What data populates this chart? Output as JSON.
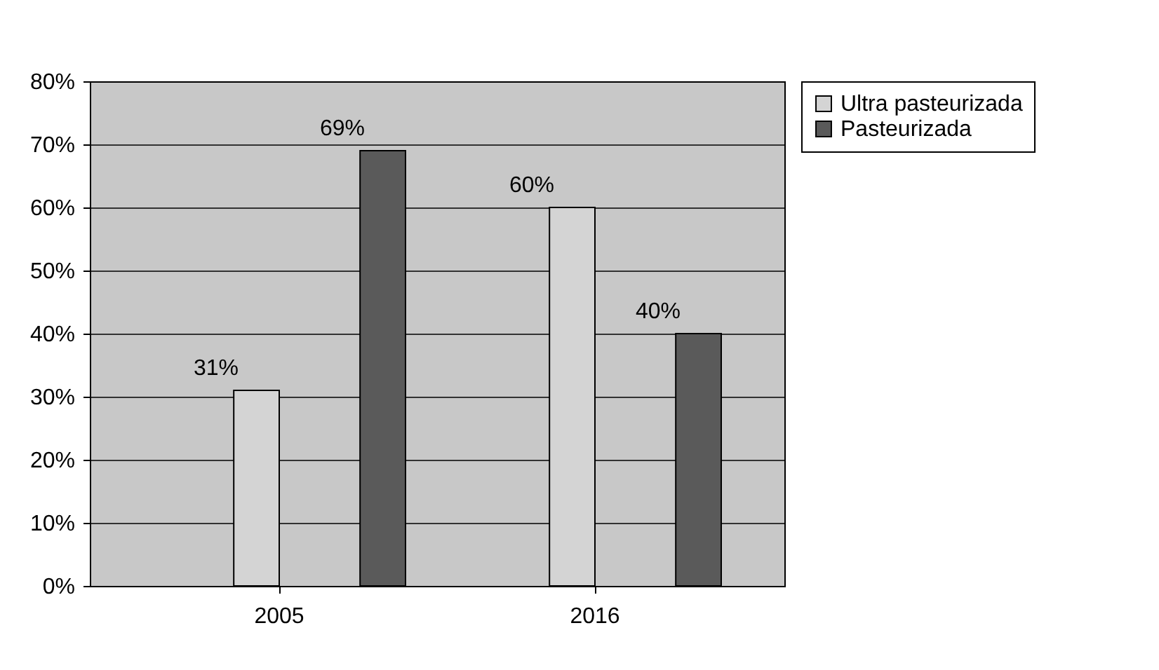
{
  "chart_data": {
    "type": "bar",
    "categories": [
      "2005",
      "2016"
    ],
    "series": [
      {
        "name": "Ultra pasteurizada",
        "color": "#d4d4d4",
        "values": [
          31,
          60
        ],
        "value_labels": [
          "31%",
          "60%"
        ]
      },
      {
        "name": "Pasteurizada",
        "color": "#5a5a5a",
        "values": [
          69,
          40
        ],
        "value_labels": [
          "69%",
          "40%"
        ]
      }
    ],
    "ylim": [
      0,
      80
    ],
    "yticks": [
      {
        "value": 0,
        "label": "0%"
      },
      {
        "value": 10,
        "label": "10%"
      },
      {
        "value": 20,
        "label": "20%"
      },
      {
        "value": 30,
        "label": "30%"
      },
      {
        "value": 40,
        "label": "40%"
      },
      {
        "value": 50,
        "label": "50%"
      },
      {
        "value": 60,
        "label": "60%"
      },
      {
        "value": 70,
        "label": "70%"
      },
      {
        "value": 80,
        "label": "80%"
      }
    ],
    "grid": "y",
    "legend": "right"
  }
}
